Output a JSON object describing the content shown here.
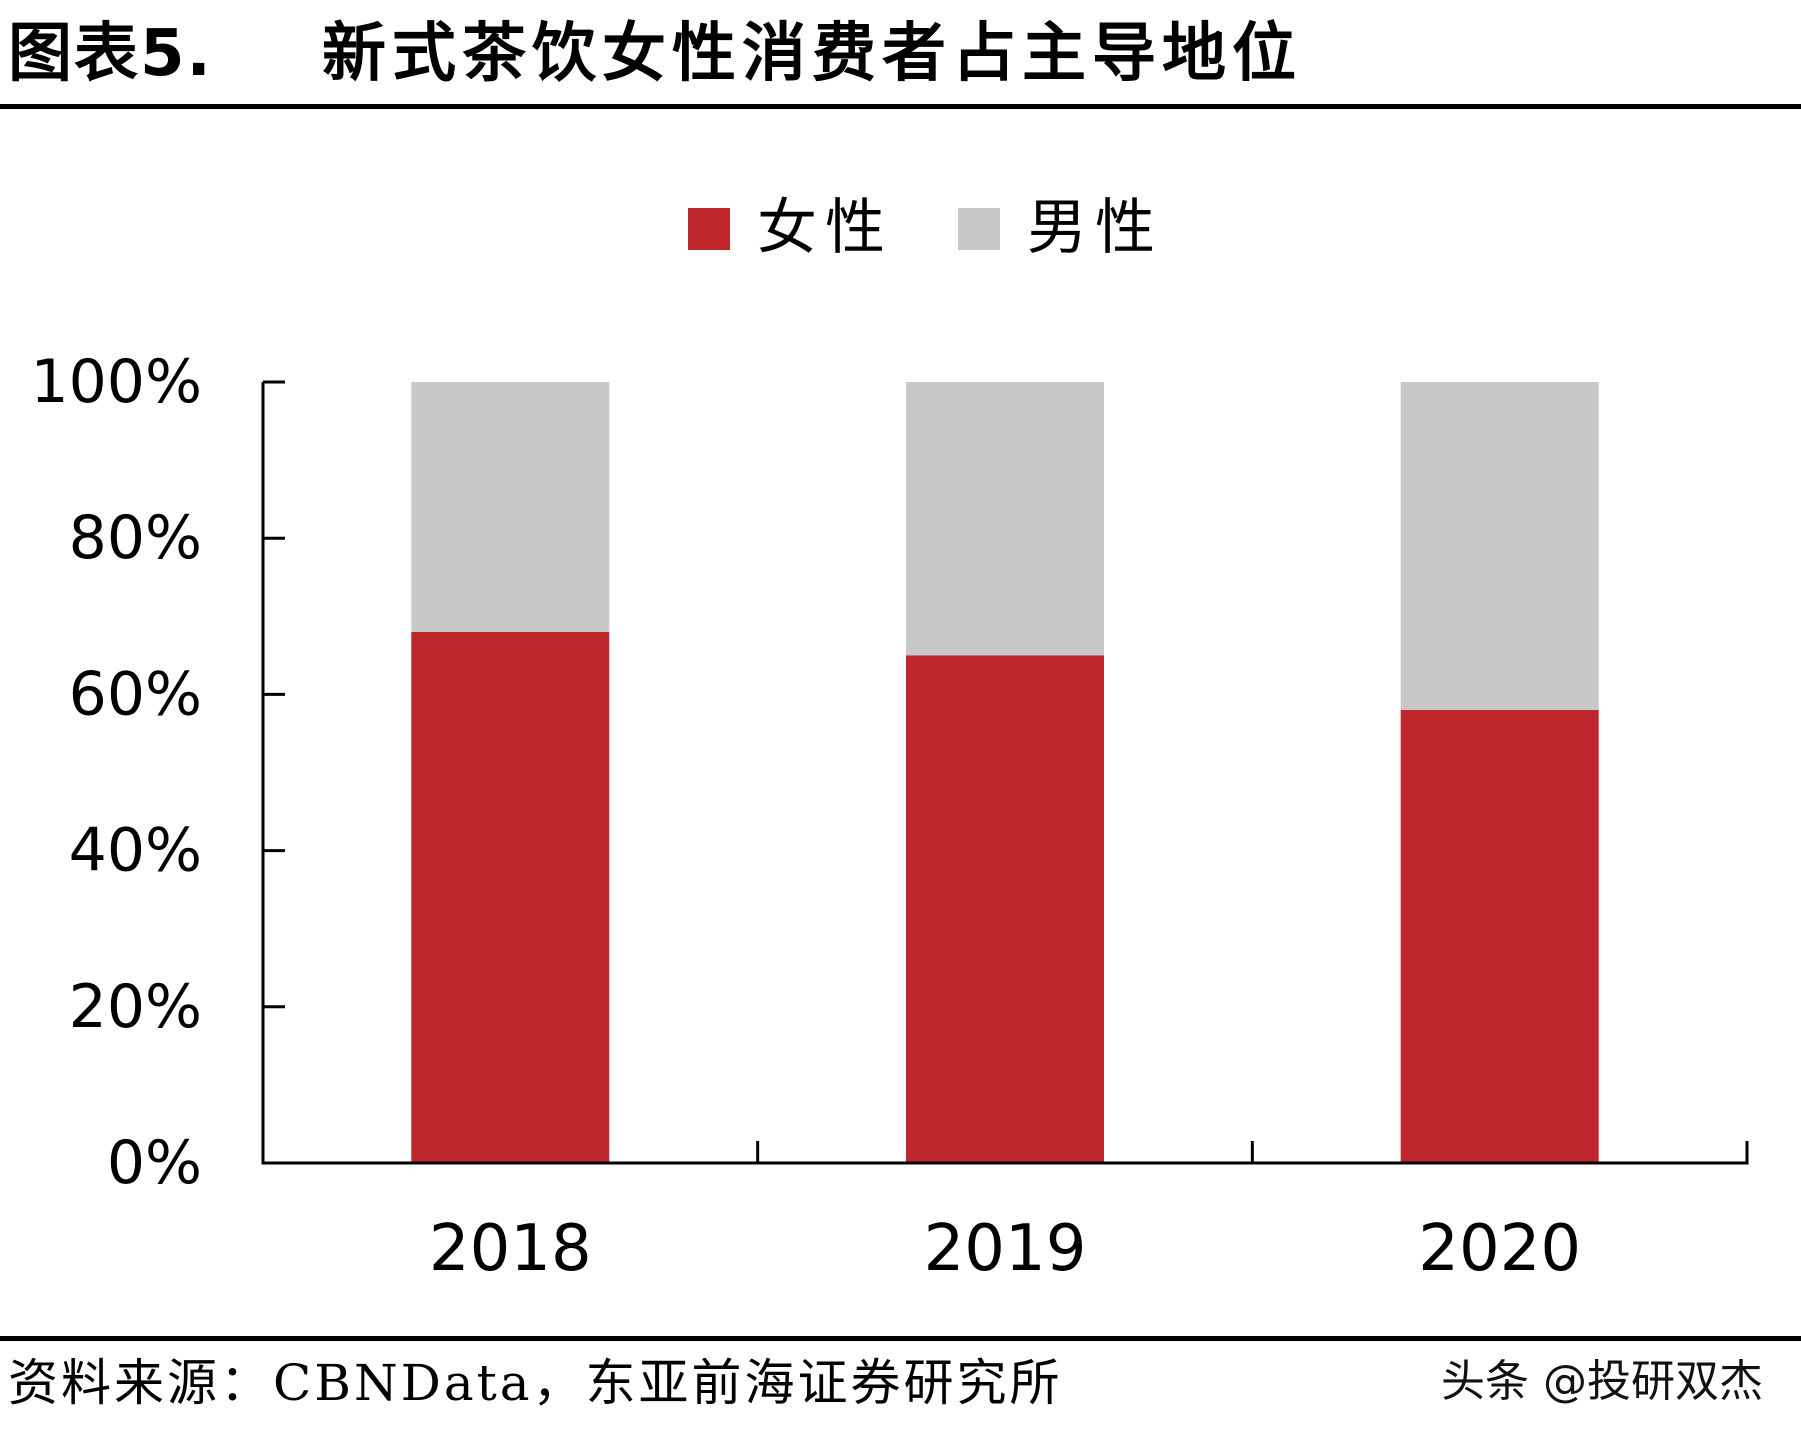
{
  "header": {
    "figure_label": "图表5.",
    "title": "新式茶饮女性消费者占主导地位"
  },
  "chart_data": {
    "type": "bar",
    "stacked": true,
    "categories": [
      "2018",
      "2019",
      "2020"
    ],
    "series": [
      {
        "name": "女性",
        "values": [
          68,
          65,
          58
        ],
        "color": "#c0272d"
      },
      {
        "name": "男性",
        "values": [
          32,
          35,
          42
        ],
        "color": "#c8c8c8"
      }
    ],
    "ylim": [
      0,
      100
    ],
    "yticks": [
      0,
      20,
      40,
      60,
      80,
      100
    ],
    "ytick_labels": [
      "0%",
      "20%",
      "40%",
      "60%",
      "80%",
      "100%"
    ],
    "legend_position": "top-center",
    "title": "",
    "xlabel": "",
    "ylabel": ""
  },
  "footer": {
    "source": "资料来源：CBNData，东亚前海证券研究所",
    "watermark": "头条 @投研双杰"
  }
}
